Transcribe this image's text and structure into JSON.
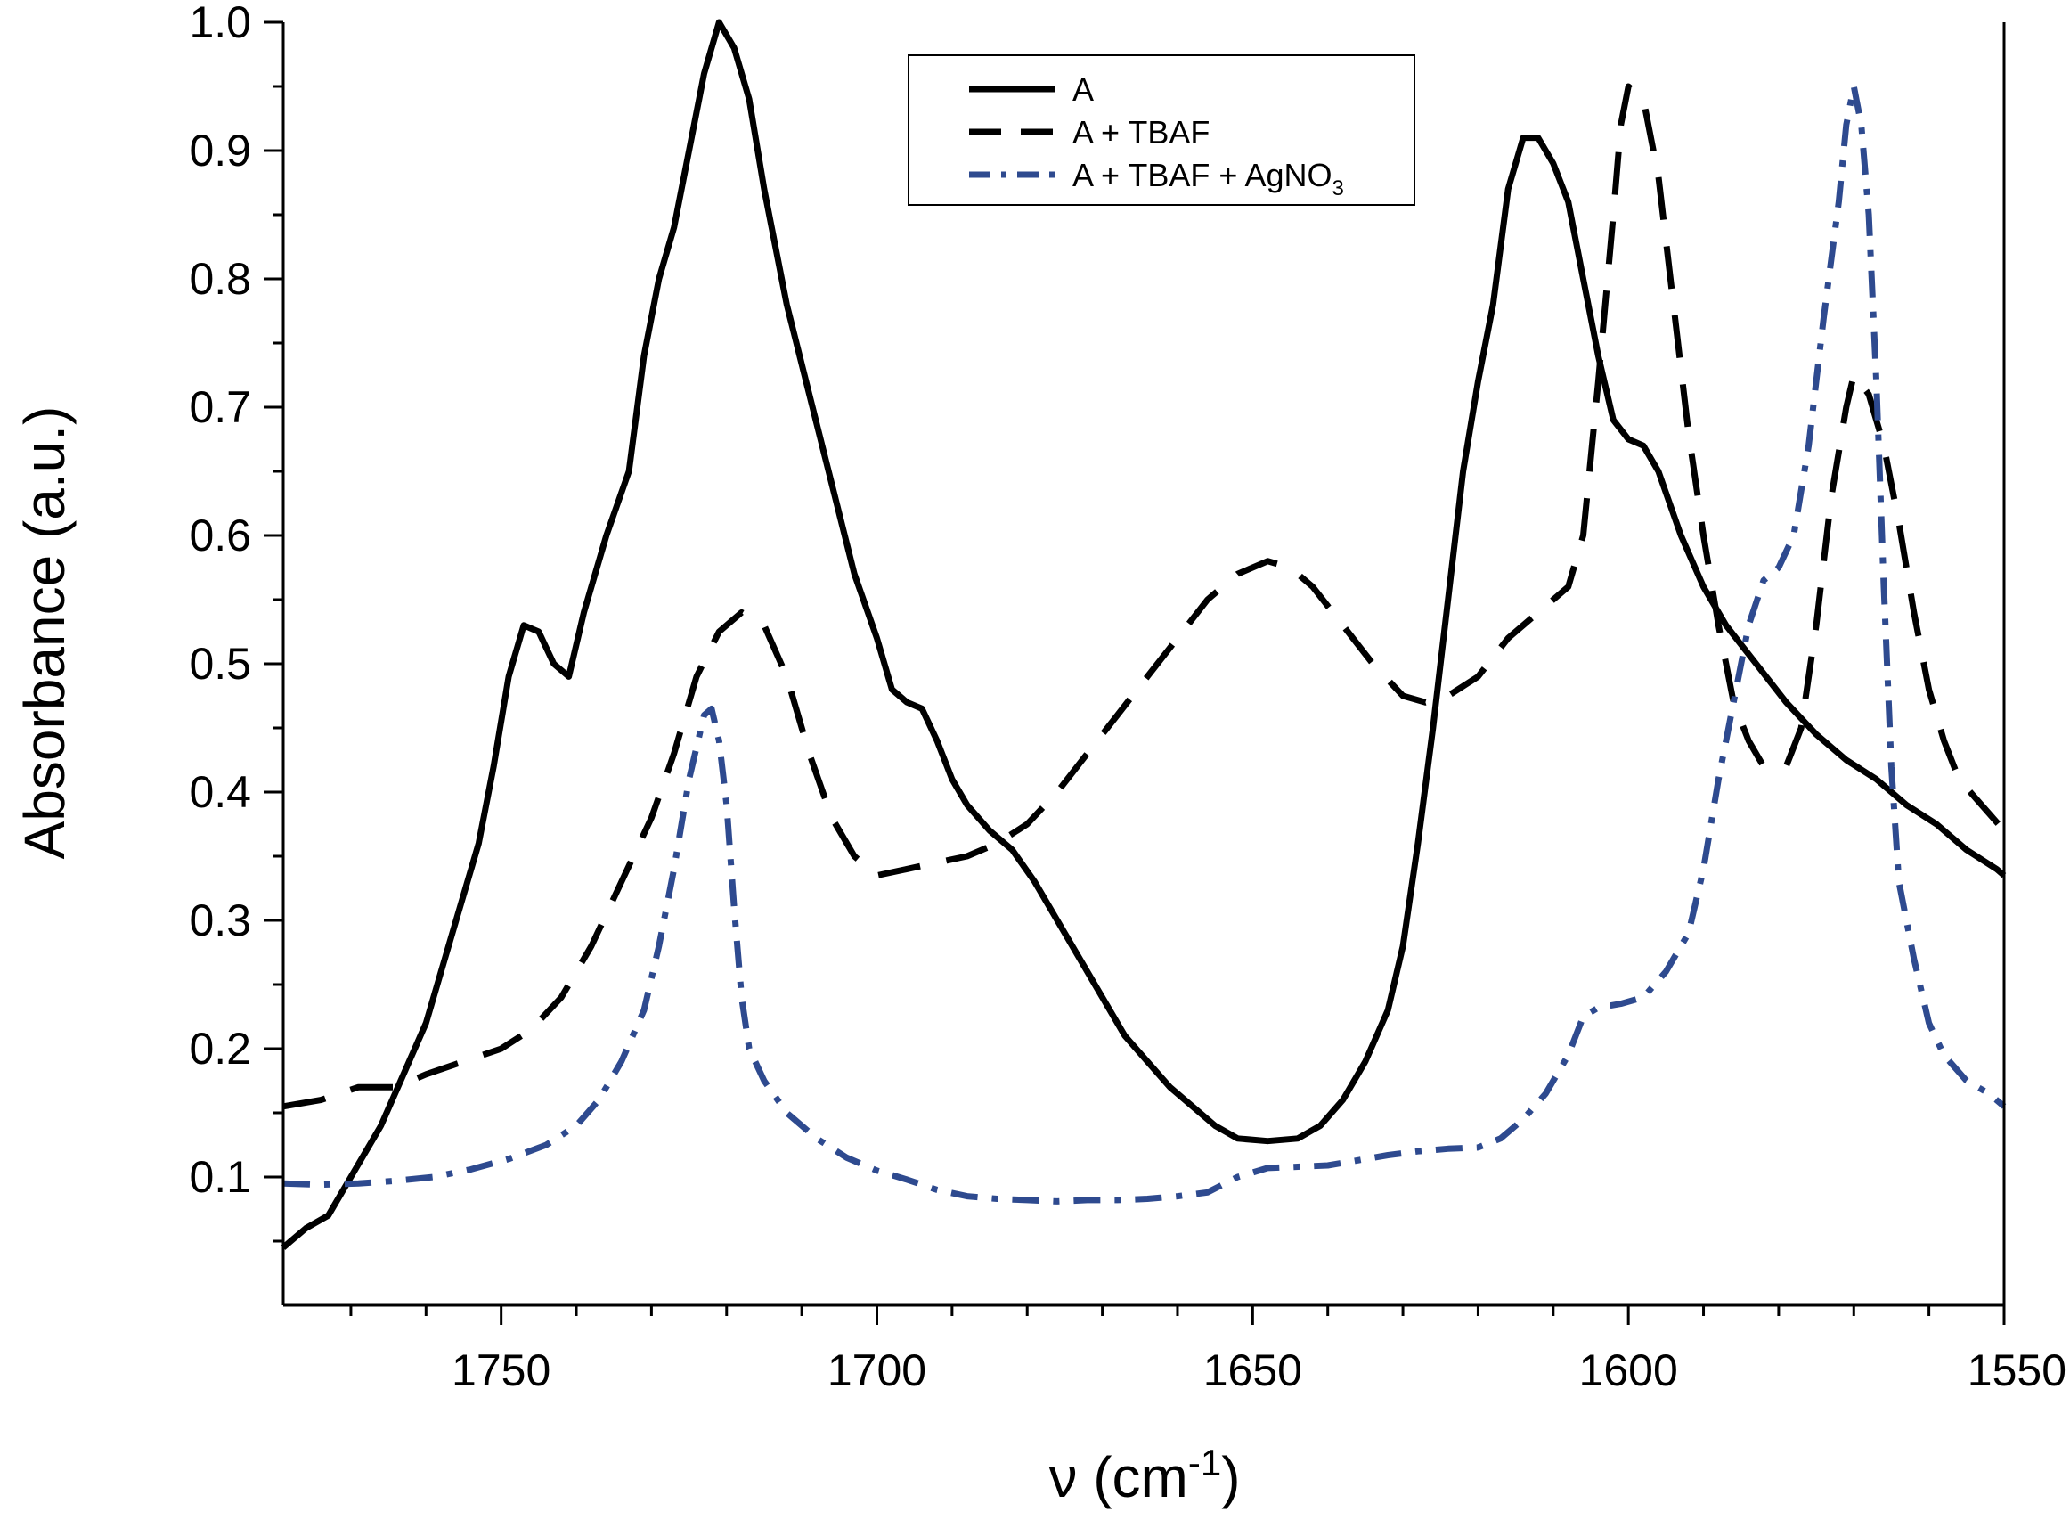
{
  "chart_data": {
    "type": "line",
    "title": "",
    "xlabel": "ν (cm",
    "xlabel_sup": "-1",
    "xlabel_end": ")",
    "ylabel": "Absorbance (a.u.)",
    "xlim": [
      1779,
      1550
    ],
    "ylim": [
      0.0,
      1.0
    ],
    "x_reversed": true,
    "xticks": [
      1750,
      1700,
      1650,
      1600,
      1550
    ],
    "xtick_labels": [
      "1750",
      "1700",
      "1650",
      "1600",
      "1550"
    ],
    "yticks": [
      0.1,
      0.2,
      0.3,
      0.4,
      0.5,
      0.6,
      0.7,
      0.8,
      0.9,
      1.0
    ],
    "ytick_labels": [
      "0.1",
      "0.2",
      "0.3",
      "0.4",
      "0.5",
      "0.6",
      "0.7",
      "0.8",
      "0.9",
      "1.0"
    ],
    "legend_position": "top-center",
    "grid": false,
    "series": [
      {
        "name": "A",
        "label": "A",
        "label_sub": "",
        "style": "solid",
        "color": "#000000",
        "points": [
          [
            1779,
            0.045
          ],
          [
            1776,
            0.06
          ],
          [
            1773,
            0.07
          ],
          [
            1770,
            0.1
          ],
          [
            1766,
            0.14
          ],
          [
            1763,
            0.18
          ],
          [
            1760,
            0.22
          ],
          [
            1757,
            0.28
          ],
          [
            1753,
            0.36
          ],
          [
            1751,
            0.42
          ],
          [
            1749,
            0.49
          ],
          [
            1747,
            0.53
          ],
          [
            1745,
            0.525
          ],
          [
            1743,
            0.5
          ],
          [
            1741,
            0.49
          ],
          [
            1739,
            0.54
          ],
          [
            1736,
            0.6
          ],
          [
            1733,
            0.65
          ],
          [
            1731,
            0.74
          ],
          [
            1729,
            0.8
          ],
          [
            1727,
            0.84
          ],
          [
            1725,
            0.9
          ],
          [
            1723,
            0.96
          ],
          [
            1721,
            1.0
          ],
          [
            1719,
            0.98
          ],
          [
            1717,
            0.94
          ],
          [
            1715,
            0.87
          ],
          [
            1712,
            0.78
          ],
          [
            1709,
            0.71
          ],
          [
            1706,
            0.64
          ],
          [
            1703,
            0.57
          ],
          [
            1700,
            0.52
          ],
          [
            1698,
            0.48
          ],
          [
            1696,
            0.47
          ],
          [
            1694,
            0.465
          ],
          [
            1692,
            0.44
          ],
          [
            1690,
            0.41
          ],
          [
            1688,
            0.39
          ],
          [
            1685,
            0.37
          ],
          [
            1682,
            0.355
          ],
          [
            1679,
            0.33
          ],
          [
            1676,
            0.3
          ],
          [
            1673,
            0.27
          ],
          [
            1670,
            0.24
          ],
          [
            1667,
            0.21
          ],
          [
            1664,
            0.19
          ],
          [
            1661,
            0.17
          ],
          [
            1658,
            0.155
          ],
          [
            1655,
            0.14
          ],
          [
            1652,
            0.13
          ],
          [
            1648,
            0.128
          ],
          [
            1644,
            0.13
          ],
          [
            1641,
            0.14
          ],
          [
            1638,
            0.16
          ],
          [
            1635,
            0.19
          ],
          [
            1632,
            0.23
          ],
          [
            1630,
            0.28
          ],
          [
            1628,
            0.36
          ],
          [
            1626,
            0.45
          ],
          [
            1624,
            0.55
          ],
          [
            1622,
            0.65
          ],
          [
            1620,
            0.72
          ],
          [
            1618,
            0.78
          ],
          [
            1616,
            0.87
          ],
          [
            1614,
            0.91
          ],
          [
            1612,
            0.91
          ],
          [
            1610,
            0.89
          ],
          [
            1608,
            0.86
          ],
          [
            1606,
            0.8
          ],
          [
            1604,
            0.74
          ],
          [
            1602,
            0.69
          ],
          [
            1600,
            0.675
          ],
          [
            1598,
            0.67
          ],
          [
            1596,
            0.65
          ],
          [
            1593,
            0.6
          ],
          [
            1590,
            0.56
          ],
          [
            1587,
            0.53
          ],
          [
            1583,
            0.5
          ],
          [
            1579,
            0.47
          ],
          [
            1575,
            0.445
          ],
          [
            1571,
            0.425
          ],
          [
            1567,
            0.41
          ],
          [
            1563,
            0.39
          ],
          [
            1559,
            0.375
          ],
          [
            1555,
            0.355
          ],
          [
            1551,
            0.34
          ],
          [
            1550,
            0.335
          ]
        ]
      },
      {
        "name": "A + TBAF",
        "label": "A + TBAF",
        "label_sub": "",
        "style": "dashed",
        "color": "#000000",
        "points": [
          [
            1779,
            0.155
          ],
          [
            1774,
            0.16
          ],
          [
            1769,
            0.17
          ],
          [
            1764,
            0.17
          ],
          [
            1760,
            0.18
          ],
          [
            1755,
            0.19
          ],
          [
            1750,
            0.2
          ],
          [
            1746,
            0.215
          ],
          [
            1742,
            0.24
          ],
          [
            1738,
            0.28
          ],
          [
            1734,
            0.33
          ],
          [
            1730,
            0.38
          ],
          [
            1727,
            0.43
          ],
          [
            1724,
            0.49
          ],
          [
            1721,
            0.525
          ],
          [
            1718,
            0.54
          ],
          [
            1715,
            0.53
          ],
          [
            1712,
            0.49
          ],
          [
            1709,
            0.43
          ],
          [
            1706,
            0.38
          ],
          [
            1703,
            0.35
          ],
          [
            1700,
            0.335
          ],
          [
            1696,
            0.34
          ],
          [
            1692,
            0.345
          ],
          [
            1688,
            0.35
          ],
          [
            1684,
            0.36
          ],
          [
            1680,
            0.375
          ],
          [
            1676,
            0.4
          ],
          [
            1672,
            0.43
          ],
          [
            1668,
            0.46
          ],
          [
            1664,
            0.49
          ],
          [
            1660,
            0.52
          ],
          [
            1656,
            0.55
          ],
          [
            1652,
            0.57
          ],
          [
            1648,
            0.58
          ],
          [
            1645,
            0.575
          ],
          [
            1642,
            0.56
          ],
          [
            1638,
            0.53
          ],
          [
            1634,
            0.5
          ],
          [
            1630,
            0.475
          ],
          [
            1627,
            0.47
          ],
          [
            1624,
            0.475
          ],
          [
            1620,
            0.49
          ],
          [
            1616,
            0.52
          ],
          [
            1612,
            0.54
          ],
          [
            1608,
            0.56
          ],
          [
            1606,
            0.6
          ],
          [
            1604,
            0.72
          ],
          [
            1602,
            0.85
          ],
          [
            1601,
            0.92
          ],
          [
            1600,
            0.95
          ],
          [
            1598,
            0.94
          ],
          [
            1596,
            0.88
          ],
          [
            1594,
            0.78
          ],
          [
            1592,
            0.68
          ],
          [
            1590,
            0.6
          ],
          [
            1588,
            0.53
          ],
          [
            1586,
            0.47
          ],
          [
            1584,
            0.44
          ],
          [
            1582,
            0.42
          ],
          [
            1579,
            0.42
          ],
          [
            1577,
            0.45
          ],
          [
            1575,
            0.53
          ],
          [
            1573,
            0.63
          ],
          [
            1571,
            0.7
          ],
          [
            1570,
            0.725
          ],
          [
            1568,
            0.71
          ],
          [
            1566,
            0.67
          ],
          [
            1564,
            0.61
          ],
          [
            1562,
            0.54
          ],
          [
            1560,
            0.48
          ],
          [
            1558,
            0.44
          ],
          [
            1556,
            0.41
          ],
          [
            1553,
            0.39
          ],
          [
            1550,
            0.37
          ]
        ]
      },
      {
        "name": "A + TBAF + AgNO3",
        "label": "A + TBAF + AgNO",
        "label_sub": "3",
        "style": "dashdot",
        "color": "#2e4a8f",
        "points": [
          [
            1779,
            0.095
          ],
          [
            1774,
            0.094
          ],
          [
            1769,
            0.095
          ],
          [
            1764,
            0.097
          ],
          [
            1759,
            0.1
          ],
          [
            1754,
            0.106
          ],
          [
            1749,
            0.114
          ],
          [
            1744,
            0.125
          ],
          [
            1740,
            0.14
          ],
          [
            1737,
            0.16
          ],
          [
            1734,
            0.19
          ],
          [
            1731,
            0.23
          ],
          [
            1729,
            0.28
          ],
          [
            1727,
            0.34
          ],
          [
            1725,
            0.41
          ],
          [
            1723,
            0.46
          ],
          [
            1722,
            0.465
          ],
          [
            1721,
            0.44
          ],
          [
            1720,
            0.39
          ],
          [
            1719,
            0.31
          ],
          [
            1718,
            0.24
          ],
          [
            1717,
            0.2
          ],
          [
            1715,
            0.175
          ],
          [
            1712,
            0.15
          ],
          [
            1708,
            0.13
          ],
          [
            1704,
            0.115
          ],
          [
            1700,
            0.105
          ],
          [
            1696,
            0.098
          ],
          [
            1692,
            0.09
          ],
          [
            1688,
            0.085
          ],
          [
            1684,
            0.083
          ],
          [
            1680,
            0.082
          ],
          [
            1676,
            0.081
          ],
          [
            1672,
            0.082
          ],
          [
            1668,
            0.082
          ],
          [
            1664,
            0.083
          ],
          [
            1660,
            0.085
          ],
          [
            1656,
            0.088
          ],
          [
            1652,
            0.1
          ],
          [
            1648,
            0.107
          ],
          [
            1644,
            0.108
          ],
          [
            1640,
            0.109
          ],
          [
            1636,
            0.113
          ],
          [
            1632,
            0.117
          ],
          [
            1628,
            0.12
          ],
          [
            1624,
            0.122
          ],
          [
            1620,
            0.123
          ],
          [
            1617,
            0.13
          ],
          [
            1614,
            0.145
          ],
          [
            1611,
            0.165
          ],
          [
            1608,
            0.195
          ],
          [
            1606,
            0.225
          ],
          [
            1604,
            0.232
          ],
          [
            1601,
            0.235
          ],
          [
            1598,
            0.24
          ],
          [
            1595,
            0.26
          ],
          [
            1592,
            0.29
          ],
          [
            1590,
            0.34
          ],
          [
            1588,
            0.41
          ],
          [
            1586,
            0.47
          ],
          [
            1584,
            0.53
          ],
          [
            1582,
            0.565
          ],
          [
            1580,
            0.575
          ],
          [
            1578,
            0.6
          ],
          [
            1576,
            0.67
          ],
          [
            1574,
            0.77
          ],
          [
            1572,
            0.86
          ],
          [
            1571,
            0.92
          ],
          [
            1570,
            0.95
          ],
          [
            1569,
            0.92
          ],
          [
            1568,
            0.85
          ],
          [
            1567,
            0.72
          ],
          [
            1566,
            0.56
          ],
          [
            1565,
            0.42
          ],
          [
            1564,
            0.33
          ],
          [
            1562,
            0.27
          ],
          [
            1560,
            0.22
          ],
          [
            1558,
            0.195
          ],
          [
            1555,
            0.175
          ],
          [
            1552,
            0.165
          ],
          [
            1550,
            0.155
          ]
        ]
      }
    ]
  }
}
